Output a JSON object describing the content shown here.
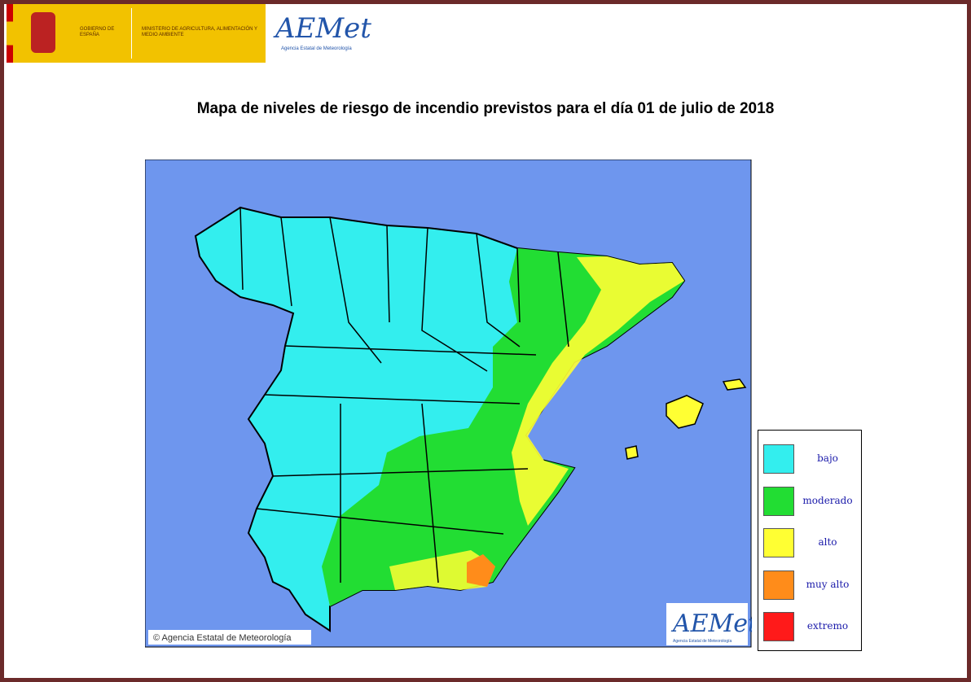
{
  "header": {
    "government": "GOBIERNO DE ESPAÑA",
    "ministry": "MINISTERIO DE AGRICULTURA, ALIMENTACIÓN Y MEDIO AMBIENTE",
    "logo": "AEMet",
    "logo_caption": "Agencia Estatal de Meteorología"
  },
  "title": "Mapa de niveles de riesgo de incendio previstos para el día 01 de  julio de 2018",
  "map": {
    "copyright": "© Agencia Estatal de Meteorología",
    "logo": "AEMet",
    "logo_caption": "Agencia Estatal de Meteorología"
  },
  "legend": {
    "items": [
      {
        "label": "bajo",
        "color": "#33eeee"
      },
      {
        "label": "moderado",
        "color": "#22dd33"
      },
      {
        "label": "alto",
        "color": "#ffff33"
      },
      {
        "label": "muy alto",
        "color": "#ff8c1a"
      },
      {
        "label": "extremo",
        "color": "#ff1a1a"
      }
    ]
  }
}
